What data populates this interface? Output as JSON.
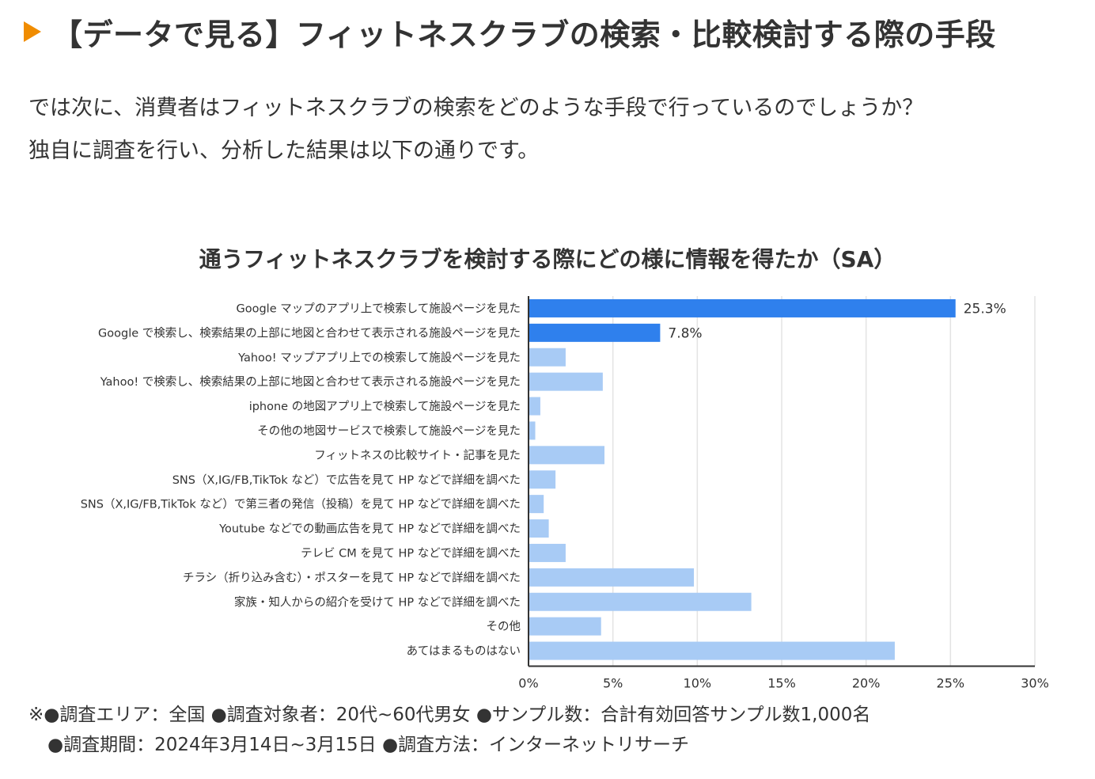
{
  "heading": {
    "icon": "triangle-marker-icon",
    "text": "【データで見る】フィットネスクラブの検索・比較検討する際の手段"
  },
  "intro": {
    "line1": "では次に、消費者はフィットネスクラブの検索をどのような手段で行っているのでしょうか？",
    "line2": "独自に調査を行い、分析した結果は以下の通りです。"
  },
  "chart_data": {
    "type": "bar",
    "orientation": "horizontal",
    "title": "通うフィットネスクラブを検討する際にどの様に情報を得たか（SA）",
    "categories": [
      "Google マップのアプリ上で検索して施設ページを見た",
      "Google で検索し、検索結果の上部に地図と合わせて表示される施設ページを見た",
      "Yahoo! マップアプリ上での検索して施設ページを見た",
      "Yahoo! で検索し、検索結果の上部に地図と合わせて表示される施設ページを見た",
      "iphone の地図アプリ上で検索して施設ページを見た",
      "その他の地図サービスで検索して施設ページを見た",
      "フィットネスの比較サイト・記事を見た",
      "SNS（X,IG/FB,TikTok など）で広告を見て HP などで詳細を調べた",
      "SNS（X,IG/FB,TikTok など）で第三者の発信（投稿）を見て HP などで詳細を調べた",
      "Youtube などでの動画広告を見て HP などで詳細を調べた",
      "テレビ CM を見て HP などで詳細を調べた",
      "チラシ（折り込み含む）・ポスターを見て HP などで詳細を調べた",
      "家族・知人からの紹介を受けて HP などで詳細を調べた",
      "その他",
      "あてはまるものはない"
    ],
    "values": [
      25.3,
      7.8,
      2.2,
      4.4,
      0.7,
      0.4,
      4.5,
      1.6,
      0.9,
      1.2,
      2.2,
      9.8,
      13.2,
      4.3,
      21.7
    ],
    "value_labels": [
      "25.3%",
      "7.8%",
      "",
      "",
      "",
      "",
      "",
      "",
      "",
      "",
      "",
      "",
      "",
      "",
      ""
    ],
    "highlight": [
      true,
      true,
      false,
      false,
      false,
      false,
      false,
      false,
      false,
      false,
      false,
      false,
      false,
      false,
      false
    ],
    "xlim": [
      0,
      30
    ],
    "xticks": [
      0,
      5,
      10,
      15,
      20,
      25,
      30
    ],
    "xtick_labels": [
      "0%",
      "5%",
      "10%",
      "15%",
      "20%",
      "25%",
      "30%"
    ],
    "grid": true,
    "colors": {
      "highlight": "#2f80ed",
      "normal": "#a8cbf5",
      "grid": "#e3e3e3",
      "axis": "#333333",
      "text": "#333333"
    }
  },
  "footnote": {
    "line1": "※●調査エリア：全国 ●調査対象者：20代~60代男女 ●サンプル数：合計有効回答サンプル数1,000名",
    "line2": "●調査期間：2024年3月14日~3月15日 ●調査方法：インターネットリサーチ"
  },
  "colors": {
    "accent": "#f08c00",
    "text": "#333333"
  }
}
